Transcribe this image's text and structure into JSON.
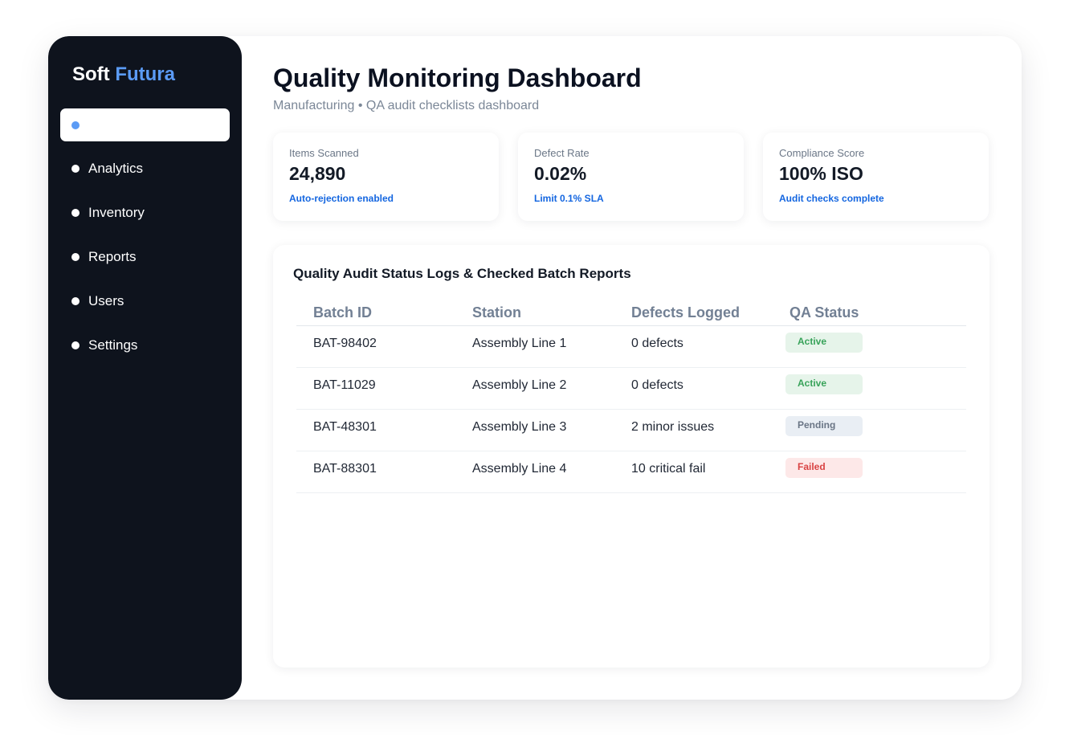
{
  "brand": {
    "name": "Soft",
    "accent": "Futura",
    "accent_color": "#5b9bf5"
  },
  "sidebar": {
    "items": [
      {
        "label": "",
        "active": true
      },
      {
        "label": "Analytics",
        "active": false
      },
      {
        "label": "Inventory",
        "active": false
      },
      {
        "label": "Reports",
        "active": false
      },
      {
        "label": "Users",
        "active": false
      },
      {
        "label": "Settings",
        "active": false
      }
    ]
  },
  "header": {
    "title": "Quality Monitoring Dashboard",
    "subtitle": "Manufacturing • QA audit checklists dashboard"
  },
  "cards": [
    {
      "label": "Items Scanned",
      "value": "24,890",
      "note": "Auto-rejection enabled"
    },
    {
      "label": "Defect Rate",
      "value": "0.02%",
      "note": "Limit 0.1% SLA"
    },
    {
      "label": "Compliance Score",
      "value": "100% ISO",
      "note": "Audit checks complete"
    }
  ],
  "panel": {
    "title": "Quality Audit Status Logs & Checked Batch Reports",
    "columns": [
      "Batch ID",
      "Station",
      "Defects Logged",
      "QA Status"
    ],
    "rows": [
      {
        "batch": "BAT-98402",
        "station": "Assembly Line 1",
        "defects": "0 defects",
        "status": "Active",
        "status_type": "active"
      },
      {
        "batch": "BAT-11029",
        "station": "Assembly Line 2",
        "defects": "0 defects",
        "status": "Active",
        "status_type": "active"
      },
      {
        "batch": "BAT-48301",
        "station": "Assembly Line 3",
        "defects": "2 minor issues",
        "status": "Pending",
        "status_type": "pending"
      },
      {
        "batch": "BAT-88301",
        "station": "Assembly Line 4",
        "defects": "10 critical fail",
        "status": "Failed",
        "status_type": "failed"
      }
    ]
  },
  "colors": {
    "sidebar_bg": "#0e131d",
    "accent": "#5b9bf5",
    "note_blue": "#1466e0",
    "status_active": "#38a35a",
    "status_pending": "#6a7585",
    "status_failed": "#d94343"
  }
}
